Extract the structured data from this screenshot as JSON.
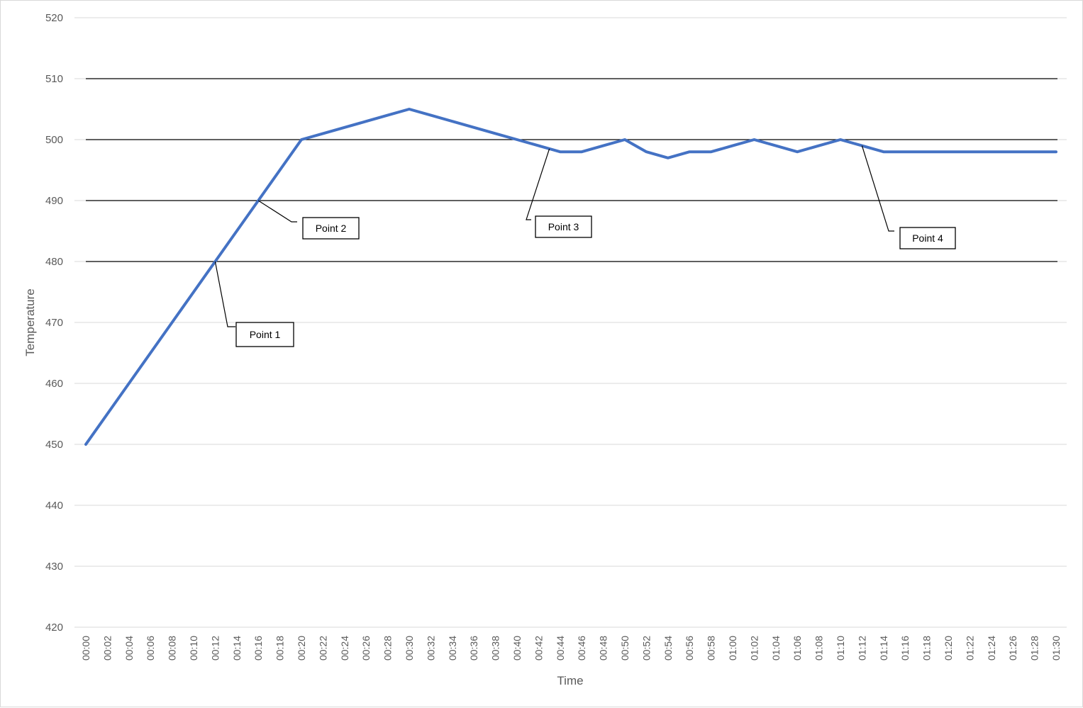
{
  "chart_data": {
    "type": "line",
    "xlabel": "Time",
    "ylabel": "Temperature",
    "ylim": [
      420,
      520
    ],
    "yticks": [
      420,
      430,
      440,
      450,
      460,
      470,
      480,
      490,
      500,
      510,
      520
    ],
    "grid": true,
    "legend": "none",
    "categories": [
      "00:00",
      "00:02",
      "00:04",
      "00:06",
      "00:08",
      "00:10",
      "00:12",
      "00:14",
      "00:16",
      "00:18",
      "00:20",
      "00:22",
      "00:24",
      "00:26",
      "00:28",
      "00:30",
      "00:32",
      "00:34",
      "00:36",
      "00:38",
      "00:40",
      "00:42",
      "00:44",
      "00:46",
      "00:48",
      "00:50",
      "00:52",
      "00:54",
      "00:56",
      "00:58",
      "01:00",
      "01:02",
      "01:04",
      "01:06",
      "01:08",
      "01:10",
      "01:12",
      "01:14",
      "01:16",
      "01:18",
      "01:20",
      "01:22",
      "01:24",
      "01:26",
      "01:28",
      "01:30"
    ],
    "series": [
      {
        "values": [
          450,
          455,
          460,
          465,
          470,
          475,
          480,
          485,
          490,
          495,
          500,
          501,
          502,
          503,
          504,
          505,
          504,
          503,
          502,
          501,
          500,
          499,
          498,
          498,
          499,
          500,
          498,
          497,
          498,
          498,
          499,
          500,
          499,
          498,
          499,
          500,
          499,
          498,
          498,
          498,
          498,
          498,
          498,
          498,
          498,
          498
        ]
      }
    ],
    "reference_lines": [
      480,
      490,
      500,
      510
    ],
    "annotations": [
      {
        "label": "Point 1",
        "time": "00:12",
        "value": 480
      },
      {
        "label": "Point 2",
        "time": "00:16",
        "value": 490
      },
      {
        "label": "Point 3",
        "time": "00:43",
        "value": 498.5
      },
      {
        "label": "Point 4",
        "time": "01:12",
        "value": 499
      }
    ],
    "colors": {
      "line": "#4472c4",
      "grid": "#d9d9d9",
      "reference": "#000000",
      "text": "#595959"
    }
  }
}
